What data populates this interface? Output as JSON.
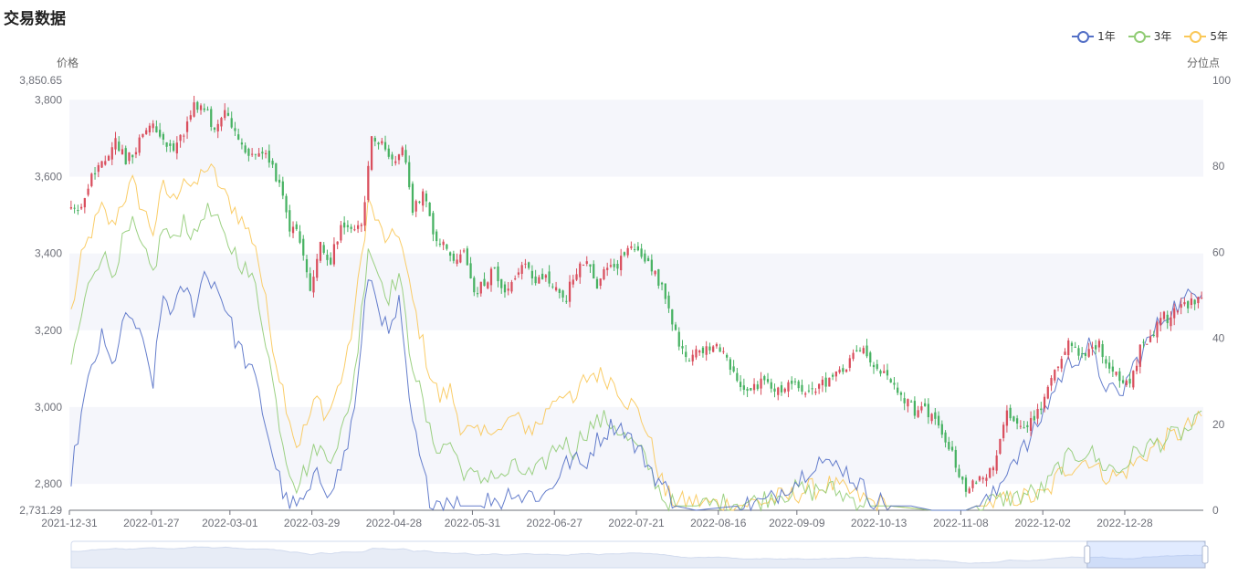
{
  "title": "交易数据",
  "legend": [
    {
      "name": "1年",
      "color": "#5470c6"
    },
    {
      "name": "3年",
      "color": "#91cc75"
    },
    {
      "name": "5年",
      "color": "#fac858"
    }
  ],
  "axes": {
    "left_name": "价格",
    "right_name": "分位点"
  },
  "colors": {
    "up": "#d94e5d",
    "down": "#47b262",
    "band": "#f5f6fb"
  },
  "chart_data": {
    "type": "candlestick+line",
    "x_labels": [
      "2021-12-31",
      "2022-01-27",
      "2022-03-01",
      "2022-03-29",
      "2022-04-28",
      "2022-05-31",
      "2022-06-27",
      "2022-07-21",
      "2022-08-16",
      "2022-09-09",
      "2022-10-13",
      "2022-11-08",
      "2022-12-02",
      "2022-12-28"
    ],
    "y_left": {
      "min": 2731.29,
      "max": 3850.65,
      "ticks": [
        2800,
        3000,
        3200,
        3400,
        3600,
        3800
      ],
      "min_label": "2,731.29",
      "max_label": "3,850.65"
    },
    "y_right": {
      "min": 0,
      "max": 100,
      "ticks": [
        0,
        20,
        40,
        60,
        80,
        100
      ]
    },
    "close_anchors": [
      [
        0,
        3530
      ],
      [
        3,
        3520
      ],
      [
        6,
        3600
      ],
      [
        10,
        3650
      ],
      [
        13,
        3700
      ],
      [
        16,
        3640
      ],
      [
        20,
        3690
      ],
      [
        23,
        3740
      ],
      [
        26,
        3690
      ],
      [
        30,
        3660
      ],
      [
        33,
        3720
      ],
      [
        36,
        3790
      ],
      [
        39,
        3780
      ],
      [
        42,
        3720
      ],
      [
        45,
        3760
      ],
      [
        48,
        3720
      ],
      [
        52,
        3640
      ],
      [
        55,
        3670
      ],
      [
        58,
        3650
      ],
      [
        61,
        3570
      ],
      [
        64,
        3470
      ],
      [
        67,
        3440
      ],
      [
        70,
        3300
      ],
      [
        73,
        3430
      ],
      [
        76,
        3380
      ],
      [
        79,
        3470
      ],
      [
        82,
        3460
      ],
      [
        85,
        3470
      ],
      [
        88,
        3700
      ],
      [
        91,
        3680
      ],
      [
        94,
        3640
      ],
      [
        97,
        3680
      ],
      [
        100,
        3520
      ],
      [
        103,
        3560
      ],
      [
        106,
        3450
      ],
      [
        109,
        3420
      ],
      [
        112,
        3380
      ],
      [
        115,
        3400
      ],
      [
        118,
        3300
      ],
      [
        121,
        3320
      ],
      [
        124,
        3360
      ],
      [
        127,
        3290
      ],
      [
        130,
        3340
      ],
      [
        133,
        3370
      ],
      [
        136,
        3320
      ],
      [
        139,
        3350
      ],
      [
        142,
        3300
      ],
      [
        145,
        3290
      ],
      [
        148,
        3360
      ],
      [
        151,
        3370
      ],
      [
        154,
        3320
      ],
      [
        157,
        3360
      ],
      [
        160,
        3370
      ],
      [
        163,
        3410
      ],
      [
        166,
        3420
      ],
      [
        169,
        3370
      ],
      [
        172,
        3330
      ],
      [
        175,
        3260
      ],
      [
        178,
        3170
      ],
      [
        181,
        3130
      ],
      [
        184,
        3140
      ],
      [
        187,
        3160
      ],
      [
        190,
        3150
      ],
      [
        193,
        3110
      ],
      [
        196,
        3060
      ],
      [
        199,
        3040
      ],
      [
        202,
        3060
      ],
      [
        205,
        3050
      ],
      [
        208,
        3040
      ],
      [
        211,
        3060
      ],
      [
        214,
        3050
      ],
      [
        217,
        3040
      ],
      [
        220,
        3060
      ],
      [
        223,
        3080
      ],
      [
        226,
        3090
      ],
      [
        229,
        3150
      ],
      [
        232,
        3140
      ],
      [
        235,
        3110
      ],
      [
        238,
        3080
      ],
      [
        241,
        3060
      ],
      [
        244,
        3020
      ],
      [
        247,
        2990
      ],
      [
        250,
        2990
      ],
      [
        253,
        2960
      ],
      [
        256,
        2920
      ],
      [
        259,
        2850
      ],
      [
        262,
        2790
      ],
      [
        265,
        2800
      ],
      [
        268,
        2830
      ],
      [
        271,
        2860
      ],
      [
        274,
        2990
      ],
      [
        277,
        2970
      ],
      [
        280,
        2950
      ],
      [
        283,
        2990
      ],
      [
        286,
        3040
      ],
      [
        289,
        3120
      ],
      [
        292,
        3160
      ],
      [
        295,
        3140
      ],
      [
        298,
        3150
      ],
      [
        301,
        3160
      ],
      [
        304,
        3100
      ],
      [
        307,
        3080
      ],
      [
        310,
        3060
      ],
      [
        313,
        3150
      ],
      [
        316,
        3180
      ],
      [
        319,
        3240
      ],
      [
        322,
        3230
      ],
      [
        325,
        3270
      ],
      [
        328,
        3270
      ],
      [
        330,
        3280
      ]
    ],
    "p1_anchors": [
      [
        0,
        8
      ],
      [
        3,
        22
      ],
      [
        6,
        33
      ],
      [
        9,
        40
      ],
      [
        12,
        33
      ],
      [
        15,
        43
      ],
      [
        18,
        45
      ],
      [
        21,
        38
      ],
      [
        24,
        30
      ],
      [
        27,
        50
      ],
      [
        30,
        46
      ],
      [
        33,
        52
      ],
      [
        36,
        47
      ],
      [
        39,
        55
      ],
      [
        42,
        53
      ],
      [
        45,
        48
      ],
      [
        48,
        40
      ],
      [
        51,
        35
      ],
      [
        54,
        30
      ],
      [
        57,
        20
      ],
      [
        60,
        10
      ],
      [
        63,
        2
      ],
      [
        66,
        1
      ],
      [
        69,
        3
      ],
      [
        72,
        8
      ],
      [
        75,
        5
      ],
      [
        78,
        8
      ],
      [
        81,
        15
      ],
      [
        84,
        30
      ],
      [
        87,
        55
      ],
      [
        90,
        48
      ],
      [
        93,
        40
      ],
      [
        96,
        48
      ],
      [
        99,
        25
      ],
      [
        102,
        12
      ],
      [
        105,
        3
      ],
      [
        108,
        2
      ],
      [
        111,
        3
      ],
      [
        114,
        1
      ],
      [
        120,
        1
      ],
      [
        123,
        3
      ],
      [
        126,
        2
      ],
      [
        129,
        5
      ],
      [
        132,
        3
      ],
      [
        135,
        4
      ],
      [
        138,
        3
      ],
      [
        141,
        6
      ],
      [
        144,
        10
      ],
      [
        147,
        12
      ],
      [
        150,
        10
      ],
      [
        153,
        15
      ],
      [
        156,
        18
      ],
      [
        159,
        20
      ],
      [
        162,
        19
      ],
      [
        165,
        15
      ],
      [
        168,
        12
      ],
      [
        171,
        8
      ],
      [
        174,
        5
      ],
      [
        177,
        1
      ],
      [
        183,
        0
      ],
      [
        195,
        1
      ],
      [
        204,
        2
      ],
      [
        207,
        4
      ],
      [
        210,
        6
      ],
      [
        213,
        7
      ],
      [
        216,
        10
      ],
      [
        219,
        12
      ],
      [
        222,
        10
      ],
      [
        225,
        11
      ],
      [
        228,
        8
      ],
      [
        231,
        6
      ],
      [
        234,
        3
      ],
      [
        237,
        2
      ],
      [
        240,
        1
      ],
      [
        246,
        1
      ],
      [
        252,
        0
      ],
      [
        258,
        0
      ],
      [
        262,
        0
      ],
      [
        265,
        1
      ],
      [
        268,
        2
      ],
      [
        271,
        4
      ],
      [
        274,
        10
      ],
      [
        277,
        13
      ],
      [
        280,
        15
      ],
      [
        283,
        20
      ],
      [
        286,
        25
      ],
      [
        289,
        30
      ],
      [
        292,
        34
      ],
      [
        295,
        36
      ],
      [
        298,
        38
      ],
      [
        301,
        32
      ],
      [
        304,
        28
      ],
      [
        307,
        26
      ],
      [
        310,
        32
      ],
      [
        313,
        36
      ],
      [
        316,
        40
      ],
      [
        319,
        44
      ],
      [
        322,
        47
      ],
      [
        325,
        48
      ],
      [
        328,
        50
      ],
      [
        331,
        52
      ]
    ],
    "p3_anchors": [
      [
        0,
        34
      ],
      [
        3,
        45
      ],
      [
        6,
        55
      ],
      [
        9,
        60
      ],
      [
        12,
        55
      ],
      [
        15,
        62
      ],
      [
        18,
        66
      ],
      [
        21,
        60
      ],
      [
        24,
        55
      ],
      [
        27,
        66
      ],
      [
        30,
        62
      ],
      [
        33,
        68
      ],
      [
        36,
        63
      ],
      [
        39,
        70
      ],
      [
        42,
        68
      ],
      [
        45,
        63
      ],
      [
        48,
        60
      ],
      [
        51,
        56
      ],
      [
        54,
        52
      ],
      [
        57,
        40
      ],
      [
        60,
        25
      ],
      [
        63,
        12
      ],
      [
        66,
        6
      ],
      [
        69,
        10
      ],
      [
        72,
        15
      ],
      [
        75,
        12
      ],
      [
        78,
        16
      ],
      [
        81,
        22
      ],
      [
        84,
        38
      ],
      [
        87,
        62
      ],
      [
        90,
        55
      ],
      [
        93,
        50
      ],
      [
        96,
        55
      ],
      [
        99,
        38
      ],
      [
        102,
        28
      ],
      [
        105,
        18
      ],
      [
        108,
        14
      ],
      [
        111,
        16
      ],
      [
        114,
        10
      ],
      [
        117,
        8
      ],
      [
        120,
        7
      ],
      [
        123,
        9
      ],
      [
        126,
        7
      ],
      [
        129,
        10
      ],
      [
        132,
        9
      ],
      [
        135,
        8
      ],
      [
        138,
        10
      ],
      [
        141,
        14
      ],
      [
        144,
        16
      ],
      [
        147,
        14
      ],
      [
        150,
        18
      ],
      [
        153,
        20
      ],
      [
        156,
        21
      ],
      [
        159,
        20
      ],
      [
        162,
        17
      ],
      [
        165,
        15
      ],
      [
        168,
        12
      ],
      [
        171,
        7
      ],
      [
        174,
        2
      ],
      [
        177,
        1
      ],
      [
        183,
        1
      ],
      [
        195,
        2
      ],
      [
        201,
        2
      ],
      [
        204,
        3
      ],
      [
        207,
        4
      ],
      [
        210,
        4
      ],
      [
        213,
        5
      ],
      [
        216,
        4
      ],
      [
        219,
        5
      ],
      [
        222,
        5
      ],
      [
        225,
        4
      ],
      [
        228,
        3
      ],
      [
        231,
        2
      ],
      [
        234,
        1
      ],
      [
        240,
        1
      ],
      [
        252,
        0
      ],
      [
        258,
        0
      ],
      [
        262,
        0
      ],
      [
        265,
        1
      ],
      [
        268,
        2
      ],
      [
        271,
        2
      ],
      [
        274,
        3
      ],
      [
        277,
        3
      ],
      [
        280,
        4
      ],
      [
        283,
        4
      ],
      [
        286,
        6
      ],
      [
        289,
        10
      ],
      [
        292,
        12
      ],
      [
        295,
        13
      ],
      [
        298,
        14
      ],
      [
        301,
        11
      ],
      [
        304,
        10
      ],
      [
        307,
        9
      ],
      [
        310,
        12
      ],
      [
        313,
        14
      ],
      [
        316,
        15
      ],
      [
        319,
        16
      ],
      [
        322,
        17
      ],
      [
        325,
        18
      ],
      [
        328,
        19
      ],
      [
        331,
        21
      ]
    ],
    "p5_anchors": [
      [
        0,
        46
      ],
      [
        3,
        58
      ],
      [
        6,
        65
      ],
      [
        9,
        70
      ],
      [
        12,
        66
      ],
      [
        15,
        72
      ],
      [
        18,
        76
      ],
      [
        21,
        70
      ],
      [
        24,
        65
      ],
      [
        27,
        75
      ],
      [
        30,
        72
      ],
      [
        33,
        78
      ],
      [
        36,
        74
      ],
      [
        39,
        80
      ],
      [
        42,
        78
      ],
      [
        45,
        73
      ],
      [
        48,
        70
      ],
      [
        51,
        66
      ],
      [
        54,
        62
      ],
      [
        57,
        48
      ],
      [
        60,
        35
      ],
      [
        63,
        25
      ],
      [
        66,
        15
      ],
      [
        69,
        20
      ],
      [
        72,
        26
      ],
      [
        75,
        22
      ],
      [
        78,
        28
      ],
      [
        81,
        36
      ],
      [
        84,
        52
      ],
      [
        87,
        72
      ],
      [
        90,
        66
      ],
      [
        93,
        62
      ],
      [
        96,
        65
      ],
      [
        99,
        52
      ],
      [
        102,
        42
      ],
      [
        105,
        32
      ],
      [
        108,
        26
      ],
      [
        111,
        28
      ],
      [
        114,
        20
      ],
      [
        117,
        18
      ],
      [
        120,
        17
      ],
      [
        123,
        20
      ],
      [
        126,
        18
      ],
      [
        129,
        22
      ],
      [
        132,
        20
      ],
      [
        135,
        19
      ],
      [
        138,
        21
      ],
      [
        141,
        26
      ],
      [
        144,
        28
      ],
      [
        147,
        24
      ],
      [
        150,
        30
      ],
      [
        153,
        32
      ],
      [
        156,
        31
      ],
      [
        159,
        30
      ],
      [
        162,
        26
      ],
      [
        165,
        24
      ],
      [
        168,
        20
      ],
      [
        171,
        12
      ],
      [
        174,
        4
      ],
      [
        177,
        2
      ],
      [
        183,
        2
      ],
      [
        195,
        1
      ],
      [
        201,
        2
      ],
      [
        204,
        2
      ],
      [
        207,
        3
      ],
      [
        210,
        3
      ],
      [
        213,
        4
      ],
      [
        216,
        5
      ],
      [
        219,
        5
      ],
      [
        222,
        6
      ],
      [
        225,
        5
      ],
      [
        228,
        4
      ],
      [
        231,
        3
      ],
      [
        234,
        2
      ],
      [
        240,
        1
      ],
      [
        252,
        0
      ],
      [
        258,
        0
      ],
      [
        262,
        0
      ],
      [
        265,
        1
      ],
      [
        268,
        1
      ],
      [
        271,
        2
      ],
      [
        274,
        2
      ],
      [
        277,
        3
      ],
      [
        280,
        3
      ],
      [
        283,
        3
      ],
      [
        286,
        4
      ],
      [
        289,
        8
      ],
      [
        292,
        10
      ],
      [
        295,
        11
      ],
      [
        298,
        12
      ],
      [
        301,
        9
      ],
      [
        304,
        8
      ],
      [
        307,
        8
      ],
      [
        310,
        10
      ],
      [
        313,
        12
      ],
      [
        316,
        14
      ],
      [
        319,
        16
      ],
      [
        322,
        17
      ],
      [
        325,
        18
      ],
      [
        328,
        20
      ],
      [
        331,
        21
      ]
    ]
  },
  "datazoom": {
    "start_pct": 89.6,
    "end_pct": 100
  }
}
